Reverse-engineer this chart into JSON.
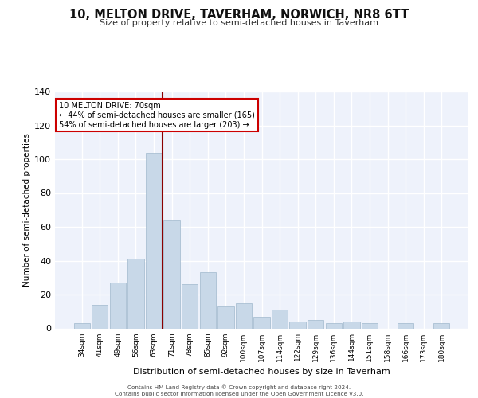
{
  "title": "10, MELTON DRIVE, TAVERHAM, NORWICH, NR8 6TT",
  "subtitle": "Size of property relative to semi-detached houses in Taverham",
  "xlabel": "Distribution of semi-detached houses by size in Taverham",
  "ylabel": "Number of semi-detached properties",
  "categories": [
    "34sqm",
    "41sqm",
    "49sqm",
    "56sqm",
    "63sqm",
    "71sqm",
    "78sqm",
    "85sqm",
    "92sqm",
    "100sqm",
    "107sqm",
    "114sqm",
    "122sqm",
    "129sqm",
    "136sqm",
    "144sqm",
    "151sqm",
    "158sqm",
    "166sqm",
    "173sqm",
    "180sqm"
  ],
  "values": [
    3,
    14,
    27,
    41,
    104,
    64,
    26,
    33,
    13,
    15,
    7,
    11,
    4,
    5,
    3,
    4,
    3,
    0,
    3,
    0,
    3
  ],
  "bar_color": "#c8d8e8",
  "bar_edge_color": "#a0b8cc",
  "highlight_color": "#8b0000",
  "annotation_title": "10 MELTON DRIVE: 70sqm",
  "annotation_line1": "← 44% of semi-detached houses are smaller (165)",
  "annotation_line2": "54% of semi-detached houses are larger (203) →",
  "annotation_box_color": "#ffffff",
  "annotation_box_edge": "#cc0000",
  "ylim": [
    0,
    140
  ],
  "yticks": [
    0,
    20,
    40,
    60,
    80,
    100,
    120,
    140
  ],
  "bg_color": "#eef2fb",
  "grid_color": "#ffffff",
  "footer_line1": "Contains HM Land Registry data © Crown copyright and database right 2024.",
  "footer_line2": "Contains public sector information licensed under the Open Government Licence v3.0."
}
